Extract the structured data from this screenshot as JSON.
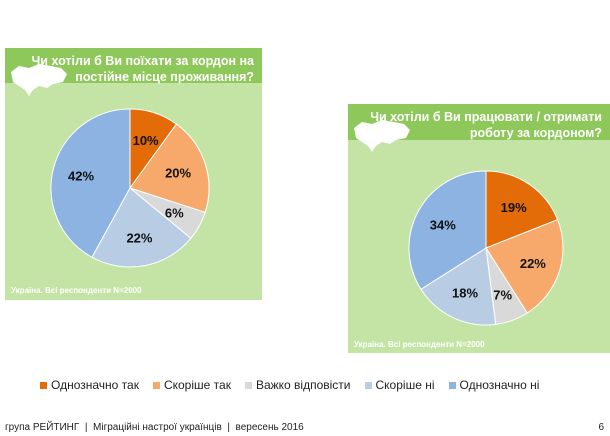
{
  "colors": [
    "#e36c09",
    "#f6a96b",
    "#d9d9d9",
    "#b8cce4",
    "#8db3e2"
  ],
  "chart_data": [
    {
      "type": "pie",
      "title": "Чи хотіли б Ви поїхати за кордон на постійне місце проживання?",
      "title_lines": [
        "Чи хотіли б Ви поїхати за кордон на",
        "постійне місце проживання?"
      ],
      "note": "Україна. Всі респонденти N=2000",
      "categories": [
        "Однозначно так",
        "Скоріше так",
        "Важко відповісти",
        "Скоріше ні",
        "Однозначно ні"
      ],
      "values": [
        10,
        20,
        6,
        22,
        42
      ],
      "labels": [
        "10%",
        "20%",
        "6%",
        "22%",
        "42%"
      ]
    },
    {
      "type": "pie",
      "title": "Чи хотіли б Ви працювати / отримати роботу за кордоном?",
      "title_lines": [
        "Чи хотіли б Ви працювати / отримати",
        "роботу за кордоном?"
      ],
      "note": "Україна. Всі респонденти N=2000",
      "categories": [
        "Однозначно так",
        "Скоріше так",
        "Важко відповісти",
        "Скоріше ні",
        "Однозначно ні"
      ],
      "values": [
        19,
        22,
        7,
        18,
        34
      ],
      "labels": [
        "19%",
        "22%",
        "7%",
        "18%",
        "34%"
      ]
    }
  ],
  "legend": [
    "Однозначно так",
    "Скоріше так",
    "Важко відповісти",
    "Скоріше ні",
    "Однозначно ні"
  ],
  "footer": "група РЕЙТИНГ  |  Міграційні настрої українців  |  вересень 2016",
  "page_number": "6"
}
